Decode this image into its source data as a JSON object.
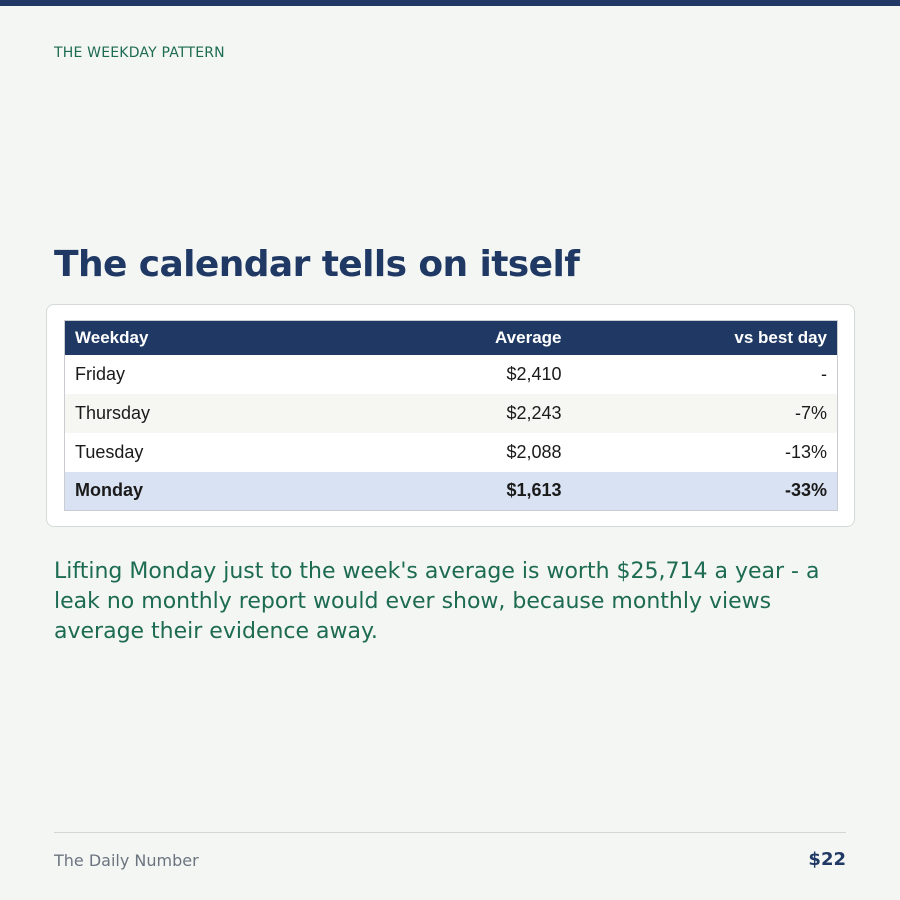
{
  "eyebrow": "THE WEEKDAY PATTERN",
  "headline": "The calendar tells on itself",
  "table": {
    "headers": [
      "Weekday",
      "Average",
      "vs best day"
    ],
    "rows": [
      {
        "weekday": "Friday",
        "average": "$2,410",
        "vs_best": "-"
      },
      {
        "weekday": "Thursday",
        "average": "$2,243",
        "vs_best": "-7%"
      },
      {
        "weekday": "Tuesday",
        "average": "$2,088",
        "vs_best": "-13%"
      },
      {
        "weekday": "Monday",
        "average": "$1,613",
        "vs_best": "-33%"
      }
    ]
  },
  "body_text": "Lifting Monday just to the week's average is worth $25,714 a year - a leak no monthly report would ever show, because monthly views average their evidence away.",
  "footer": {
    "brand": "The Daily Number",
    "number": "$22"
  },
  "colors": {
    "navy": "#1f3864",
    "green": "#1d6b52",
    "highlight_row": "#d9e2f2",
    "background": "#f3f6f3"
  }
}
